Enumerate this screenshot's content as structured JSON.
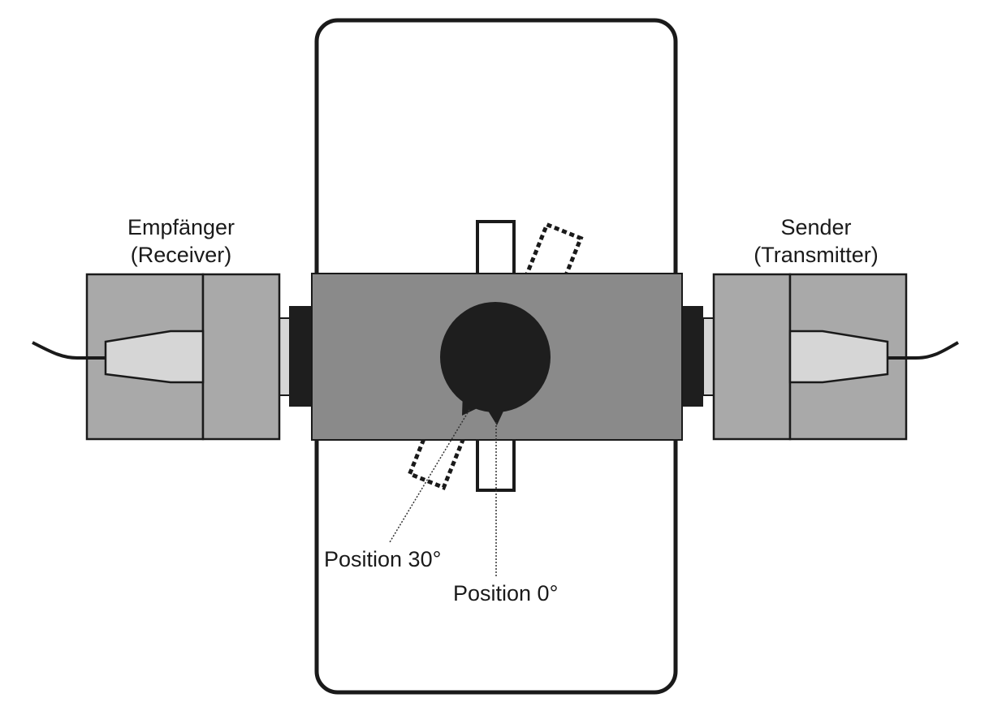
{
  "labels": {
    "receiver_line1": "Empfänger",
    "receiver_line2": "(Receiver)",
    "transmitter_line1": "Sender",
    "transmitter_line2": "(Transmitter)",
    "position_30": "Position 30°",
    "position_0": "Position 0°"
  },
  "colors": {
    "background": "#ffffff",
    "outline": "#1a1a1a",
    "housing_gray": "#a9a9a9",
    "bar_gray": "#8a8a8a",
    "lens_light": "#d6d6d6",
    "dark": "#1e1e1e"
  }
}
